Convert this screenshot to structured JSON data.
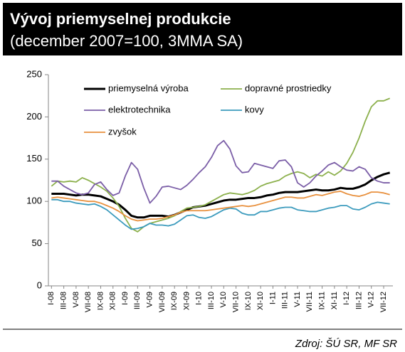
{
  "chart_data": {
    "type": "line",
    "title": "Vývoj priemyselnej produkcie",
    "subtitle": "(december 2007=100, 3MMA SA)",
    "source": "Zdroj: ŠÚ SR, MF SR",
    "categories": [
      "I-08",
      null,
      "III-08",
      null,
      "V-08",
      null,
      "VII-08",
      null,
      "IX-08",
      null,
      "XI-08",
      null,
      "I-09",
      null,
      "III-09",
      null,
      "V-09",
      null,
      "VII-09",
      null,
      "IX-09",
      null,
      "XI-09",
      null,
      "I-10",
      null,
      "III-10",
      null,
      "V-10",
      null,
      "VII-10",
      null,
      "IX-10",
      null,
      "XI-10",
      null,
      "I-11",
      null,
      "III-11",
      null,
      "V-11",
      null,
      "VII-11",
      null,
      "IX-11",
      null,
      "XI-11",
      null,
      "I-12",
      null,
      "III-12",
      null,
      "V-12",
      null,
      "VII-12",
      null
    ],
    "ylim": [
      0,
      250
    ],
    "yticks": [
      0,
      50,
      100,
      150,
      200,
      250
    ],
    "grid": false,
    "series": [
      {
        "name": "priemyselná výroba",
        "color": "#000000",
        "width": 3,
        "values": [
          109,
          109,
          109,
          108,
          107,
          108,
          108,
          107,
          106,
          103,
          100,
          96,
          90,
          83,
          81,
          81,
          83,
          83,
          83,
          82,
          84,
          87,
          90,
          93,
          94,
          95,
          97,
          99,
          101,
          102,
          102,
          103,
          104,
          104,
          105,
          107,
          108,
          110,
          111,
          111,
          111,
          112,
          113,
          114,
          113,
          113,
          114,
          116,
          115,
          115,
          117,
          120,
          125,
          129,
          132,
          134
        ]
      },
      {
        "name": "dopravné prostriedky",
        "color": "#8cb04c",
        "width": 1.8,
        "values": [
          118,
          124,
          123,
          124,
          123,
          128,
          125,
          121,
          117,
          112,
          104,
          94,
          80,
          68,
          64,
          70,
          74,
          76,
          78,
          80,
          83,
          88,
          92,
          93,
          94,
          96,
          100,
          104,
          108,
          110,
          109,
          108,
          110,
          113,
          118,
          121,
          123,
          125,
          130,
          133,
          135,
          133,
          128,
          132,
          130,
          135,
          131,
          136,
          145,
          158,
          175,
          195,
          212,
          219,
          219,
          222
        ]
      },
      {
        "name": "elektrotechnika",
        "color": "#7b5ea7",
        "width": 1.8,
        "values": [
          124,
          124,
          118,
          114,
          110,
          108,
          110,
          120,
          123,
          114,
          107,
          110,
          130,
          146,
          138,
          116,
          98,
          106,
          117,
          118,
          116,
          114,
          119,
          126,
          134,
          141,
          152,
          166,
          172,
          162,
          142,
          134,
          135,
          145,
          143,
          141,
          139,
          148,
          149,
          141,
          122,
          117,
          122,
          130,
          136,
          143,
          146,
          141,
          137,
          136,
          141,
          138,
          128,
          124,
          122,
          122
        ]
      },
      {
        "name": "kovy",
        "color": "#3c9bbd",
        "width": 1.8,
        "values": [
          102,
          102,
          100,
          100,
          98,
          97,
          96,
          97,
          94,
          90,
          84,
          78,
          72,
          67,
          68,
          70,
          74,
          72,
          72,
          71,
          73,
          78,
          83,
          84,
          81,
          80,
          82,
          86,
          90,
          92,
          91,
          86,
          84,
          84,
          88,
          88,
          90,
          92,
          93,
          93,
          90,
          89,
          88,
          88,
          90,
          92,
          93,
          95,
          95,
          91,
          90,
          93,
          97,
          99,
          98,
          97
        ]
      },
      {
        "name": "zvyšok",
        "color": "#e8913f",
        "width": 1.8,
        "values": [
          104,
          105,
          104,
          103,
          102,
          101,
          100,
          100,
          98,
          95,
          92,
          88,
          83,
          79,
          77,
          78,
          79,
          79,
          80,
          82,
          84,
          87,
          89,
          89,
          89,
          89,
          90,
          91,
          92,
          93,
          94,
          95,
          94,
          95,
          97,
          99,
          101,
          103,
          105,
          105,
          104,
          104,
          106,
          108,
          107,
          109,
          111,
          112,
          109,
          107,
          106,
          108,
          111,
          111,
          110,
          108
        ]
      }
    ]
  }
}
